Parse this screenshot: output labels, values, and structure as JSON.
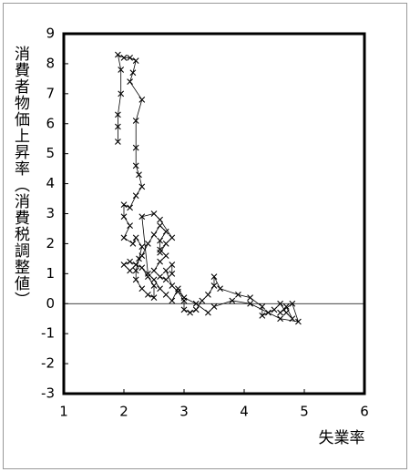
{
  "chart_data": {
    "type": "line",
    "y_label": "消費者物価上昇率（消費税調整値）",
    "x_label": "失業率",
    "xlim": [
      1,
      6
    ],
    "xticks": [
      1,
      2,
      3,
      4,
      5,
      6
    ],
    "ylim": [
      -3,
      9
    ],
    "yticks": [
      -3,
      -2,
      -1,
      0,
      1,
      2,
      3,
      4,
      5,
      6,
      7,
      8,
      9
    ],
    "reference_line": 0,
    "color": "#000000",
    "series": [
      {
        "x": [
          1.9,
          1.9,
          1.9,
          1.95,
          1.95,
          1.9,
          2.0,
          2.1,
          2.2,
          2.15,
          2.1,
          2.3,
          2.2,
          2.2,
          2.2,
          2.25,
          2.3,
          2.2,
          2.1,
          2.0,
          2.0,
          2.1,
          2.0,
          2.15,
          2.2,
          2.3,
          2.25,
          2.2,
          2.2,
          2.3,
          2.4,
          2.5,
          2.5,
          2.4,
          2.3,
          2.1,
          2.0,
          2.1,
          2.2,
          2.3,
          2.4,
          2.5,
          2.6,
          2.7,
          2.6,
          2.6,
          2.7,
          2.6,
          2.5,
          2.6,
          2.7,
          2.8,
          2.8,
          2.7,
          2.8,
          2.9,
          3.0,
          3.0,
          3.1,
          3.2,
          3.3,
          3.4,
          3.5,
          3.5,
          3.6,
          3.9,
          4.1,
          4.3,
          4.3,
          4.5,
          4.6,
          4.7,
          4.8,
          4.7,
          4.6,
          4.8,
          4.9,
          4.6,
          4.4,
          4.1,
          3.8,
          3.5,
          3.4,
          3.2,
          3.0,
          2.9,
          2.8,
          2.7,
          2.6,
          2.5,
          2.4,
          2.3,
          2.5,
          2.6,
          2.8,
          2.7,
          2.6
        ],
        "y": [
          5.4,
          5.9,
          6.3,
          7.0,
          7.8,
          8.3,
          8.2,
          8.2,
          8.1,
          7.7,
          7.4,
          6.8,
          6.1,
          5.2,
          4.6,
          4.3,
          3.9,
          3.6,
          3.2,
          3.3,
          2.9,
          2.6,
          2.2,
          2.0,
          2.2,
          1.9,
          1.5,
          1.1,
          0.8,
          0.5,
          0.3,
          0.2,
          0.6,
          0.9,
          1.2,
          1.4,
          1.3,
          1.1,
          1.3,
          1.6,
          2.0,
          2.3,
          2.6,
          2.4,
          2.1,
          1.8,
          1.6,
          1.4,
          1.1,
          0.9,
          0.8,
          1.0,
          1.3,
          1.1,
          0.6,
          0.4,
          0.1,
          -0.2,
          -0.3,
          -0.2,
          0.1,
          0.3,
          0.6,
          0.9,
          0.5,
          0.3,
          0.2,
          -0.1,
          -0.4,
          -0.2,
          0.0,
          -0.3,
          -0.5,
          -0.1,
          -0.3,
          0.0,
          -0.6,
          -0.5,
          -0.3,
          0.0,
          0.1,
          -0.1,
          -0.3,
          0.0,
          0.2,
          0.5,
          0.1,
          0.3,
          0.5,
          0.8,
          1.0,
          2.9,
          3.0,
          2.8,
          2.2,
          2.0,
          1.7
        ]
      }
    ]
  }
}
